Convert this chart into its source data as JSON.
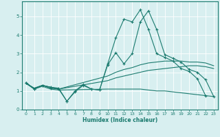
{
  "xlabel": "Humidex (Indice chaleur)",
  "ylabel": "",
  "bg_color": "#d8eff0",
  "grid_color": "#ffffff",
  "line_color": "#1a7a6e",
  "xlim": [
    -0.5,
    23.5
  ],
  "ylim": [
    0,
    5.8
  ],
  "xticks": [
    0,
    1,
    2,
    3,
    4,
    5,
    6,
    7,
    8,
    9,
    10,
    11,
    12,
    13,
    14,
    15,
    16,
    17,
    18,
    19,
    20,
    21,
    22,
    23
  ],
  "yticks": [
    0,
    1,
    2,
    3,
    4,
    5
  ],
  "series": [
    {
      "x": [
        0,
        1,
        2,
        3,
        4,
        5,
        6,
        7,
        8,
        9,
        10,
        11,
        12,
        13,
        14,
        15,
        16,
        17,
        18,
        19,
        20,
        21,
        22
      ],
      "y": [
        1.45,
        1.1,
        1.3,
        1.2,
        1.15,
        0.45,
        1.0,
        1.35,
        1.1,
        1.05,
        2.45,
        3.85,
        4.85,
        4.7,
        5.35,
        4.3,
        3.0,
        2.8,
        2.6,
        2.2,
        2.05,
        1.65,
        0.75
      ],
      "marker": "+"
    },
    {
      "x": [
        0,
        1,
        2,
        3,
        4,
        5,
        6,
        7,
        8,
        9,
        10,
        11,
        12,
        13,
        14,
        15,
        16,
        17,
        18,
        19,
        20,
        21,
        22,
        23
      ],
      "y": [
        1.45,
        1.1,
        1.3,
        1.15,
        1.1,
        0.45,
        0.95,
        1.3,
        1.1,
        1.05,
        2.4,
        3.05,
        2.45,
        3.0,
        4.7,
        5.3,
        4.3,
        2.95,
        2.75,
        2.55,
        2.15,
        2.0,
        1.6,
        0.7
      ],
      "marker": "+"
    },
    {
      "x": [
        0,
        1,
        2,
        3,
        4,
        10,
        11,
        12,
        13,
        14,
        15,
        16,
        17,
        18,
        19,
        20,
        21,
        22,
        23
      ],
      "y": [
        1.4,
        1.1,
        1.25,
        1.1,
        1.05,
        1.1,
        1.1,
        1.1,
        1.1,
        1.1,
        1.05,
        1.0,
        1.0,
        0.95,
        0.9,
        0.85,
        0.8,
        0.75,
        0.7
      ],
      "marker": null
    },
    {
      "x": [
        0,
        1,
        2,
        3,
        4,
        10,
        11,
        12,
        13,
        14,
        15,
        16,
        17,
        18,
        19,
        20,
        21,
        22,
        23
      ],
      "y": [
        1.4,
        1.15,
        1.3,
        1.2,
        1.1,
        1.55,
        1.7,
        1.8,
        1.9,
        2.0,
        2.1,
        2.15,
        2.2,
        2.25,
        2.3,
        2.35,
        2.35,
        2.3,
        2.2
      ],
      "marker": null
    },
    {
      "x": [
        0,
        1,
        2,
        3,
        4,
        10,
        11,
        12,
        13,
        14,
        15,
        16,
        17,
        18,
        19,
        20,
        21,
        22,
        23
      ],
      "y": [
        1.4,
        1.15,
        1.3,
        1.2,
        1.1,
        1.8,
        2.0,
        2.15,
        2.25,
        2.4,
        2.5,
        2.55,
        2.6,
        2.6,
        2.6,
        2.55,
        2.55,
        2.5,
        2.35
      ],
      "marker": null
    }
  ]
}
